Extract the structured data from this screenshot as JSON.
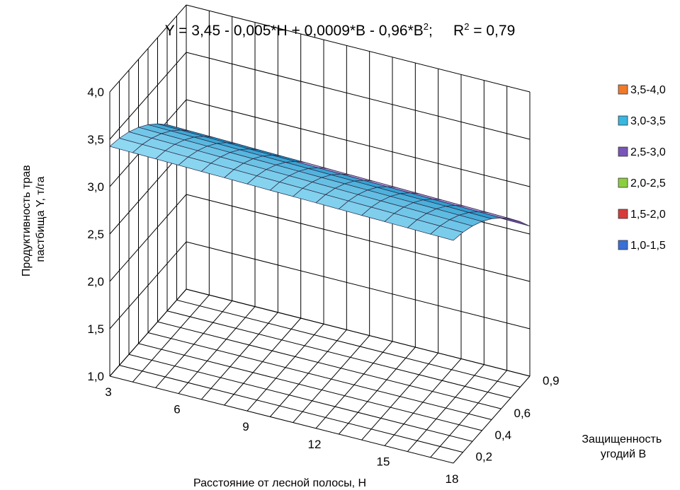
{
  "chart_data": {
    "type": "surface",
    "title_main": "Y = 3,45 - 0,005*H + 0,0009*B - 0,96*B",
    "title_sup": "2",
    "title_r2": "R",
    "title_r2_sup": "2",
    "title_r2_value": " = 0,79",
    "ylabel_line1": "Продуктивность трав",
    "ylabel_line2": "пастбища Y, т/га",
    "xlabel": "Расстояние от лесной полосы, H",
    "zlabel_line1": "Защищенность",
    "zlabel_line2": "угодий B",
    "ylim": [
      1.0,
      4.0
    ],
    "y_ticks": [
      "1,0",
      "1,5",
      "2,0",
      "2,5",
      "3,0",
      "3,5",
      "4,0"
    ],
    "x_ticks": [
      "3",
      "6",
      "9",
      "12",
      "15",
      "18"
    ],
    "x_tick_values": [
      3,
      6,
      9,
      12,
      15,
      18
    ],
    "x_range": [
      3,
      18
    ],
    "z_ticks": [
      "0,2",
      "0,4",
      "0,6",
      "0,9"
    ],
    "z_tick_values": [
      0.2,
      0.4,
      0.6,
      0.9
    ],
    "z_range": [
      0.1,
      0.9
    ],
    "coefficients": {
      "a": 3.45,
      "h": -0.005,
      "b": 0.0009,
      "b2": -0.96
    },
    "legend": [
      {
        "label": "3,5-4,0",
        "color": "#f07a2a"
      },
      {
        "label": "3,0-3,5",
        "color": "#38b8e0"
      },
      {
        "label": "2,5-3,0",
        "color": "#7a55b8"
      },
      {
        "label": "2,0-2,5",
        "color": "#8ccf3e"
      },
      {
        "label": "1,5-2,0",
        "color": "#d83a3a"
      },
      {
        "label": "1,0-1,5",
        "color": "#3a6fd8"
      }
    ],
    "band_colors": {
      "1.0": [
        "#2f5fc8",
        "#6f9af0"
      ],
      "1.5": [
        "#c02a2a",
        "#f07070"
      ],
      "2.0": [
        "#6faf22",
        "#b8e878"
      ],
      "2.5": [
        "#4a2480",
        "#b89ae8"
      ],
      "3.0": [
        "#1890c8",
        "#a8e8fb"
      ],
      "3.5": [
        "#d86010",
        "#f8b878"
      ]
    }
  }
}
